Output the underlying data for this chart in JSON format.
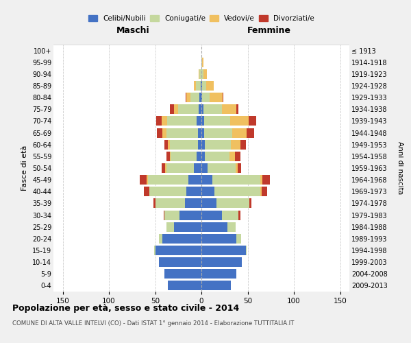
{
  "age_groups": [
    "0-4",
    "5-9",
    "10-14",
    "15-19",
    "20-24",
    "25-29",
    "30-34",
    "35-39",
    "40-44",
    "45-49",
    "50-54",
    "55-59",
    "60-64",
    "65-69",
    "70-74",
    "75-79",
    "80-84",
    "85-89",
    "90-94",
    "95-99",
    "100+"
  ],
  "birth_years": [
    "2009-2013",
    "2004-2008",
    "1999-2003",
    "1994-1998",
    "1989-1993",
    "1984-1988",
    "1979-1983",
    "1974-1978",
    "1969-1973",
    "1964-1968",
    "1959-1963",
    "1954-1958",
    "1949-1953",
    "1944-1948",
    "1939-1943",
    "1934-1938",
    "1929-1933",
    "1924-1928",
    "1919-1923",
    "1914-1918",
    "≤ 1913"
  ],
  "maschi": {
    "celibi": [
      36,
      40,
      46,
      50,
      42,
      30,
      24,
      18,
      16,
      14,
      8,
      5,
      4,
      4,
      5,
      3,
      2,
      1,
      0,
      0,
      0
    ],
    "coniugati": [
      0,
      0,
      0,
      1,
      4,
      8,
      16,
      32,
      40,
      44,
      30,
      28,
      30,
      34,
      32,
      22,
      10,
      5,
      2,
      0,
      0
    ],
    "vedovi": [
      0,
      0,
      0,
      0,
      0,
      0,
      0,
      0,
      0,
      1,
      1,
      1,
      2,
      4,
      6,
      5,
      4,
      2,
      1,
      0,
      0
    ],
    "divorziati": [
      0,
      0,
      0,
      0,
      0,
      0,
      1,
      2,
      6,
      8,
      4,
      4,
      4,
      6,
      6,
      4,
      1,
      0,
      0,
      0,
      0
    ]
  },
  "femmine": {
    "nubili": [
      32,
      38,
      44,
      48,
      38,
      28,
      22,
      16,
      14,
      12,
      7,
      4,
      4,
      3,
      3,
      2,
      1,
      1,
      0,
      0,
      0
    ],
    "coniugate": [
      0,
      0,
      0,
      1,
      5,
      9,
      18,
      36,
      50,
      52,
      30,
      26,
      28,
      30,
      28,
      20,
      8,
      4,
      2,
      1,
      0
    ],
    "vedove": [
      0,
      0,
      0,
      0,
      0,
      0,
      0,
      0,
      1,
      2,
      2,
      6,
      10,
      16,
      20,
      16,
      14,
      8,
      4,
      1,
      0
    ],
    "divorziate": [
      0,
      0,
      0,
      0,
      0,
      0,
      2,
      2,
      6,
      8,
      4,
      6,
      6,
      8,
      8,
      2,
      1,
      0,
      0,
      0,
      0
    ]
  },
  "colors": {
    "celibi": "#4472C4",
    "coniugati": "#C5D89E",
    "vedovi": "#F0C060",
    "divorziati": "#C0392B"
  },
  "xlim": 160,
  "title": "Popolazione per età, sesso e stato civile - 2014",
  "subtitle": "COMUNE DI ALTA VALLE INTELVI (CO) - Dati ISTAT 1° gennaio 2014 - Elaborazione TUTTITALIA.IT",
  "ylabel": "Fasce di età",
  "ylabel_right": "Anni di nascita",
  "xlabel_left": "Maschi",
  "xlabel_right": "Femmine",
  "bg_color": "#f0f0f0",
  "plot_bg": "#ffffff",
  "grid_color": "#cccccc"
}
